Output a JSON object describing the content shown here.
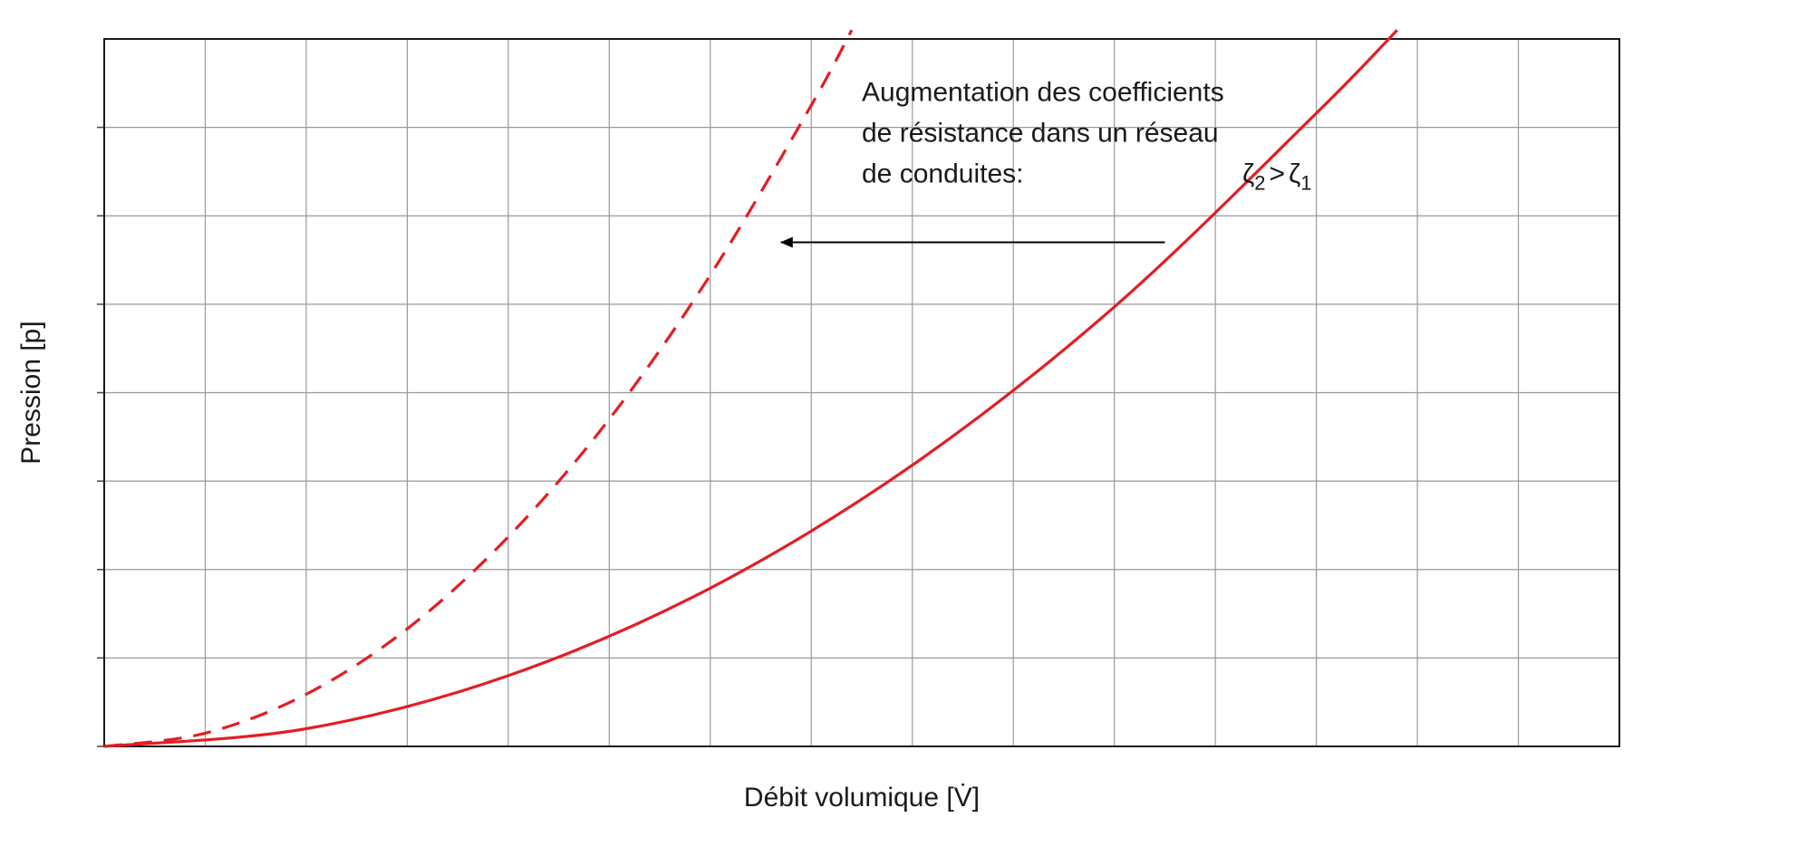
{
  "chart_data": {
    "type": "line",
    "title": "",
    "xlabel": "Débit volumique [V̇]",
    "ylabel": "Pression [p]",
    "xlim": [
      0,
      15
    ],
    "ylim": [
      0,
      8
    ],
    "grid": true,
    "x_gridlines": 15,
    "y_gridlines": 8,
    "series": [
      {
        "style": "dashed",
        "color": "#e31e24",
        "x": [
          0,
          1,
          2,
          3,
          4,
          5,
          6,
          7,
          7.4
        ],
        "y": [
          0,
          0.15,
          0.59,
          1.33,
          2.37,
          3.7,
          5.33,
          7.25,
          8.1
        ]
      },
      {
        "style": "solid",
        "color": "#e31e24",
        "x": [
          0,
          2,
          4,
          6,
          8,
          10,
          12,
          12.8
        ],
        "y": [
          0,
          0.2,
          0.8,
          1.79,
          3.18,
          4.97,
          7.16,
          8.1
        ]
      }
    ],
    "annotations": {
      "text_lines": [
        "Augmentation des coefficients",
        "de résistance dans un réseau",
        "de conduites:"
      ],
      "formula": {
        "z2": "ζ",
        "sub2": "2",
        "op": ">",
        "z1": "ζ",
        "sub1": "1"
      },
      "arrow": {
        "from": [
          10.5,
          5.7
        ],
        "to": [
          6.7,
          5.7
        ]
      },
      "text_anchor": [
        7.5,
        7.3
      ]
    }
  }
}
